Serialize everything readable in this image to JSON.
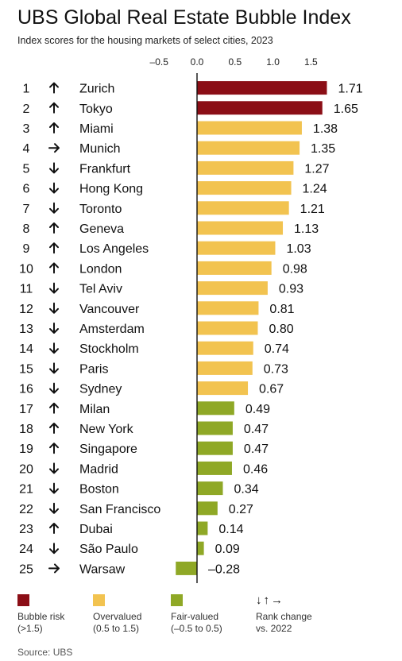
{
  "title": "UBS Global Real Estate Bubble Index",
  "subtitle": "Index scores for the housing markets of select cities, 2023",
  "source": "Source: UBS",
  "colors": {
    "bubble": "#8b0e16",
    "overvalued": "#f2c350",
    "fair": "#8fa826",
    "axis": "#111111"
  },
  "legend": {
    "bubble_label": "Bubble risk",
    "bubble_range": "(>1.5)",
    "overvalued_label": "Overvalued",
    "overvalued_range": "(0.5 to 1.5)",
    "fair_label": "Fair-valued",
    "fair_range": "(–0.5 to 0.5)",
    "rank_label": "Rank change",
    "rank_sub": "vs. 2022",
    "rank_arrows": "↓↑→"
  },
  "chart_data": {
    "type": "bar",
    "orientation": "horizontal",
    "xlim": [
      -0.5,
      1.75
    ],
    "ticks": [
      -0.5,
      0.0,
      0.5,
      1.0,
      1.5
    ],
    "tick_labels": [
      "–0.5",
      "0.0",
      "0.5",
      "1.0",
      "1.5"
    ],
    "grid": false,
    "rows": [
      {
        "rank": "1",
        "change": "up",
        "city": "Zurich",
        "value": 1.71,
        "label": "1.71",
        "category": "bubble"
      },
      {
        "rank": "2",
        "change": "up",
        "city": "Tokyo",
        "value": 1.65,
        "label": "1.65",
        "category": "bubble"
      },
      {
        "rank": "3",
        "change": "up",
        "city": "Miami",
        "value": 1.38,
        "label": "1.38",
        "category": "overvalued"
      },
      {
        "rank": "4",
        "change": "same",
        "city": "Munich",
        "value": 1.35,
        "label": "1.35",
        "category": "overvalued"
      },
      {
        "rank": "5",
        "change": "down",
        "city": "Frankfurt",
        "value": 1.27,
        "label": "1.27",
        "category": "overvalued"
      },
      {
        "rank": "6",
        "change": "down",
        "city": "Hong Kong",
        "value": 1.24,
        "label": "1.24",
        "category": "overvalued"
      },
      {
        "rank": "7",
        "change": "down",
        "city": "Toronto",
        "value": 1.21,
        "label": "1.21",
        "category": "overvalued"
      },
      {
        "rank": "8",
        "change": "up",
        "city": "Geneva",
        "value": 1.13,
        "label": "1.13",
        "category": "overvalued"
      },
      {
        "rank": "9",
        "change": "up",
        "city": "Los Angeles",
        "value": 1.03,
        "label": "1.03",
        "category": "overvalued"
      },
      {
        "rank": "10",
        "change": "up",
        "city": "London",
        "value": 0.98,
        "label": "0.98",
        "category": "overvalued"
      },
      {
        "rank": "11",
        "change": "down",
        "city": "Tel Aviv",
        "value": 0.93,
        "label": "0.93",
        "category": "overvalued"
      },
      {
        "rank": "12",
        "change": "down",
        "city": "Vancouver",
        "value": 0.81,
        "label": "0.81",
        "category": "overvalued"
      },
      {
        "rank": "13",
        "change": "down",
        "city": "Amsterdam",
        "value": 0.8,
        "label": "0.80",
        "category": "overvalued"
      },
      {
        "rank": "14",
        "change": "down",
        "city": "Stockholm",
        "value": 0.74,
        "label": "0.74",
        "category": "overvalued"
      },
      {
        "rank": "15",
        "change": "down",
        "city": "Paris",
        "value": 0.73,
        "label": "0.73",
        "category": "overvalued"
      },
      {
        "rank": "16",
        "change": "down",
        "city": "Sydney",
        "value": 0.67,
        "label": "0.67",
        "category": "overvalued"
      },
      {
        "rank": "17",
        "change": "up",
        "city": "Milan",
        "value": 0.49,
        "label": "0.49",
        "category": "fair"
      },
      {
        "rank": "18",
        "change": "up",
        "city": "New York",
        "value": 0.47,
        "label": "0.47",
        "category": "fair"
      },
      {
        "rank": "19",
        "change": "up",
        "city": "Singapore",
        "value": 0.47,
        "label": "0.47",
        "category": "fair"
      },
      {
        "rank": "20",
        "change": "down",
        "city": "Madrid",
        "value": 0.46,
        "label": "0.46",
        "category": "fair"
      },
      {
        "rank": "21",
        "change": "down",
        "city": "Boston",
        "value": 0.34,
        "label": "0.34",
        "category": "fair"
      },
      {
        "rank": "22",
        "change": "down",
        "city": "San Francisco",
        "value": 0.27,
        "label": "0.27",
        "category": "fair"
      },
      {
        "rank": "23",
        "change": "up",
        "city": "Dubai",
        "value": 0.14,
        "label": "0.14",
        "category": "fair"
      },
      {
        "rank": "24",
        "change": "down",
        "city": "São Paulo",
        "value": 0.09,
        "label": "0.09",
        "category": "fair"
      },
      {
        "rank": "25",
        "change": "same",
        "city": "Warsaw",
        "value": -0.28,
        "label": "–0.28",
        "category": "fair"
      }
    ]
  }
}
